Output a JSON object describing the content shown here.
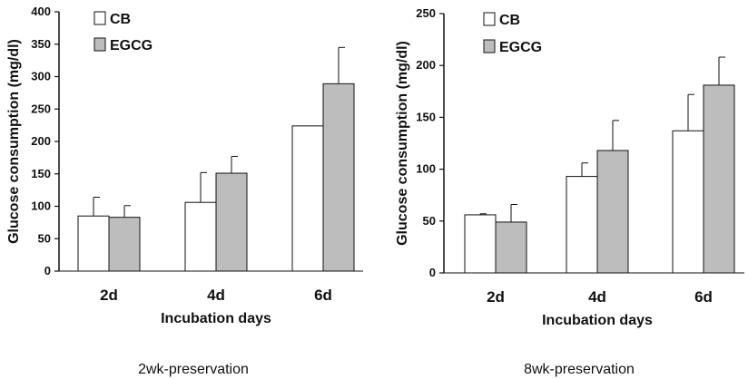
{
  "chart_data": [
    {
      "type": "bar",
      "title": "",
      "caption": "2wk-preservation",
      "xlabel": "Incubation days",
      "ylabel": "Glucose consumption (mg/dl)",
      "categories": [
        "2d",
        "4d",
        "6d"
      ],
      "ylim": [
        0,
        400
      ],
      "yticks": [
        0,
        50,
        100,
        150,
        200,
        250,
        300,
        350,
        400
      ],
      "series": [
        {
          "name": "CB",
          "values": [
            85,
            106,
            224
          ],
          "errors": [
            29,
            46,
            0
          ],
          "color": "#ffffff"
        },
        {
          "name": "EGCG",
          "values": [
            83,
            151,
            289
          ],
          "errors": [
            18,
            26,
            56
          ],
          "color": "#bdbdbd"
        }
      ],
      "legend": "top-left",
      "grid": false
    },
    {
      "type": "bar",
      "title": "",
      "caption": "8wk-preservation",
      "xlabel": "Incubation days",
      "ylabel": "Glucose consumption (mg/dl)",
      "categories": [
        "2d",
        "4d",
        "6d"
      ],
      "ylim": [
        0,
        250
      ],
      "yticks": [
        0,
        50,
        100,
        150,
        200,
        250
      ],
      "series": [
        {
          "name": "CB",
          "values": [
            56,
            93,
            137
          ],
          "errors": [
            1,
            13,
            35
          ],
          "color": "#ffffff"
        },
        {
          "name": "EGCG",
          "values": [
            49,
            118,
            181
          ],
          "errors": [
            17,
            29,
            27
          ],
          "color": "#bdbdbd"
        }
      ],
      "legend": "top-left",
      "grid": false
    }
  ]
}
